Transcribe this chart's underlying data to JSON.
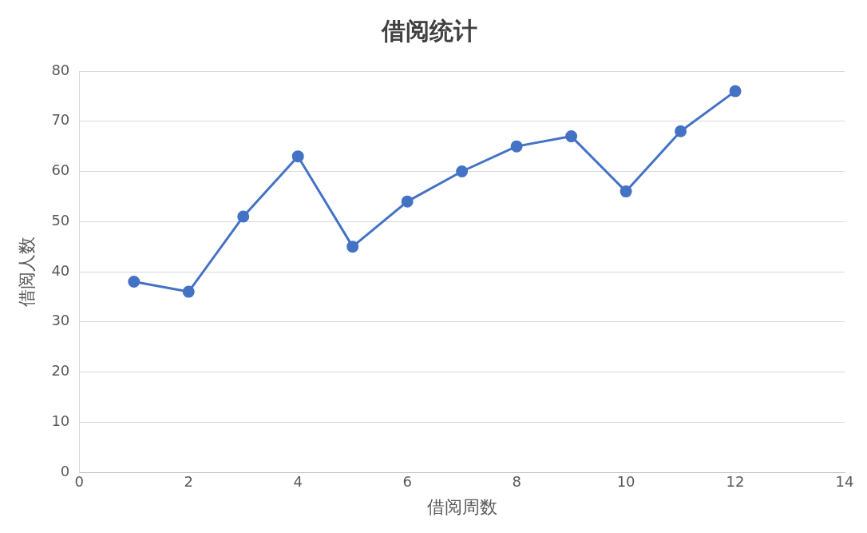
{
  "chart_data": {
    "type": "line",
    "title": "借阅统计",
    "xlabel": "借阅周数",
    "ylabel": "借阅人数",
    "x": [
      1,
      2,
      3,
      4,
      5,
      6,
      7,
      8,
      9,
      10,
      11,
      12
    ],
    "series": [
      {
        "color": "#4472c4",
        "values": [
          38,
          36,
          51,
          63,
          45,
          54,
          60,
          65,
          67,
          56,
          68,
          76
        ]
      }
    ],
    "xlim": [
      0,
      14
    ],
    "xticks": [
      0,
      2,
      4,
      6,
      8,
      10,
      12,
      14
    ],
    "ylim": [
      0,
      80
    ],
    "yticks": [
      0,
      10,
      20,
      30,
      40,
      50,
      60,
      70,
      80
    ],
    "grid": "y",
    "legend": false,
    "marker": "circle",
    "line_style": "solid"
  }
}
